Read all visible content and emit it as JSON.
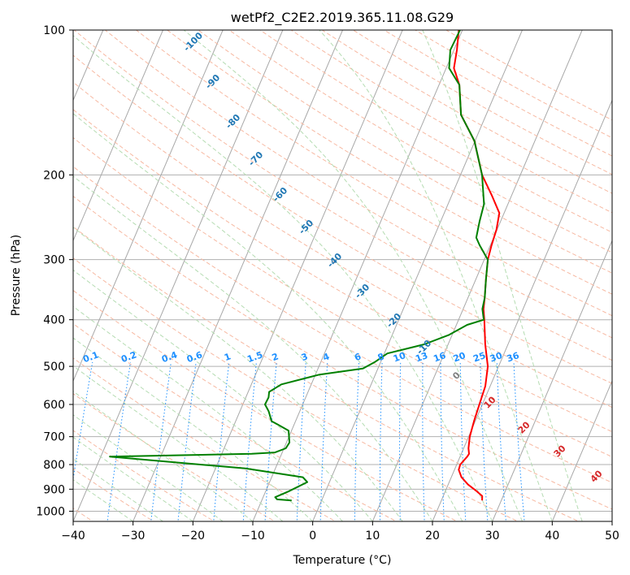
{
  "chart_data": {
    "type": "line",
    "title": "wetPf2_C2E2.2019.365.11.08.G29",
    "xlabel": "Temperature (°C)",
    "ylabel": "Pressure (hPa)",
    "xlim": [
      -40,
      50
    ],
    "ylim": [
      1050,
      100
    ],
    "y_scale": "log",
    "x_ticks": [
      -40,
      -30,
      -20,
      -10,
      0,
      10,
      20,
      30,
      40,
      50
    ],
    "y_ticks": [
      1000,
      900,
      800,
      700,
      600,
      500,
      400,
      300,
      200,
      100
    ],
    "grid": true,
    "skew": 35,
    "series": [
      {
        "color": "#ff0000",
        "values": [
          [
            26.8,
            950
          ],
          [
            26.5,
            930
          ],
          [
            25,
            905
          ],
          [
            23.3,
            880
          ],
          [
            21.7,
            850
          ],
          [
            20.7,
            820
          ],
          [
            20.6,
            800
          ],
          [
            21.2,
            770
          ],
          [
            21.3,
            760
          ],
          [
            20.8,
            740
          ],
          [
            20.2,
            700
          ],
          [
            19.8,
            650
          ],
          [
            19.5,
            600
          ],
          [
            19.2,
            550
          ],
          [
            18.2,
            500
          ],
          [
            16.2,
            450
          ],
          [
            14.3,
            400
          ],
          [
            13.4,
            380
          ],
          [
            12.8,
            360
          ],
          [
            11.7,
            330
          ],
          [
            10.6,
            300
          ],
          [
            10.2,
            280
          ],
          [
            9.9,
            260
          ],
          [
            9.2,
            240
          ],
          [
            6.6,
            220
          ],
          [
            3.6,
            200
          ],
          [
            -0.1,
            170
          ],
          [
            -4.2,
            150
          ],
          [
            -6.6,
            130
          ],
          [
            -8.7,
            120
          ],
          [
            -9.5,
            110
          ],
          [
            -10.6,
            100
          ]
        ]
      },
      {
        "color": "#008000",
        "values": [
          [
            -5,
            950
          ],
          [
            -7.5,
            945
          ],
          [
            -8,
            935
          ],
          [
            -6.2,
            910
          ],
          [
            -3.7,
            870
          ],
          [
            -4.8,
            850
          ],
          [
            -15,
            815
          ],
          [
            -38.5,
            770
          ],
          [
            -15,
            760
          ],
          [
            -11.2,
            755
          ],
          [
            -9.7,
            740
          ],
          [
            -9.5,
            720
          ],
          [
            -10.5,
            680
          ],
          [
            -12.8,
            660
          ],
          [
            -14,
            650
          ],
          [
            -15.2,
            620
          ],
          [
            -16.3,
            600
          ],
          [
            -16.2,
            580
          ],
          [
            -16.5,
            565
          ],
          [
            -15,
            545
          ],
          [
            -9.3,
            520
          ],
          [
            -2.5,
            505
          ],
          [
            -1,
            490
          ],
          [
            0.5,
            470
          ],
          [
            6,
            450
          ],
          [
            9.5,
            430
          ],
          [
            11.8,
            410
          ],
          [
            14.2,
            400
          ],
          [
            13.2,
            380
          ],
          [
            12.8,
            360
          ],
          [
            11.7,
            330
          ],
          [
            10.6,
            300
          ],
          [
            8.2,
            280
          ],
          [
            7.1,
            270
          ],
          [
            6.5,
            250
          ],
          [
            6,
            230
          ],
          [
            3.6,
            200
          ],
          [
            -0.1,
            170
          ],
          [
            -4.2,
            150
          ],
          [
            -6.6,
            130
          ],
          [
            -9.5,
            120
          ],
          [
            -10.6,
            110
          ],
          [
            -10.4,
            100
          ]
        ]
      }
    ],
    "dry_adiabat_labels": [
      "-100",
      "-90",
      "-80",
      "-70",
      "-60",
      "-50",
      "-40",
      "-30",
      "-20",
      "-10",
      "0",
      "10",
      "20",
      "30",
      "40"
    ],
    "mixing_ratio_labels": [
      "0.1",
      "0.2",
      "0.4",
      "0.6",
      "1",
      "1.5",
      "2",
      "3",
      "4",
      "6",
      "8",
      "10",
      "13",
      "16",
      "20",
      "25",
      "30",
      "36"
    ]
  }
}
